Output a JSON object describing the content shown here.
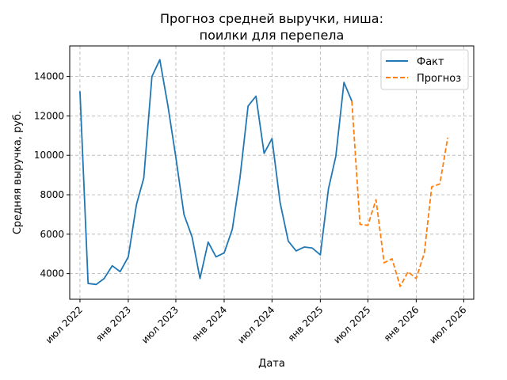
{
  "chart_data": {
    "type": "line",
    "title_lines": [
      "Прогноз средней выручки, ниша:",
      "поилки для перепела"
    ],
    "xlabel": "Дата",
    "ylabel": "Средняя выручка, руб.",
    "ylim": [
      2700,
      15550
    ],
    "y_ticks": [
      4000,
      6000,
      8000,
      10000,
      12000,
      14000
    ],
    "x_range": [
      "2022-05-23",
      "2026-08-08"
    ],
    "x_ticks": [
      {
        "date": "2022-07-01",
        "label": "июл 2022"
      },
      {
        "date": "2023-01-01",
        "label": "янв 2023"
      },
      {
        "date": "2023-07-01",
        "label": "июл 2023"
      },
      {
        "date": "2024-01-01",
        "label": "янв 2024"
      },
      {
        "date": "2024-07-01",
        "label": "июл 2024"
      },
      {
        "date": "2025-01-01",
        "label": "янв 2025"
      },
      {
        "date": "2025-07-01",
        "label": "июл 2025"
      },
      {
        "date": "2026-01-01",
        "label": "янв 2026"
      },
      {
        "date": "2026-07-01",
        "label": "июл 2026"
      }
    ],
    "grid": true,
    "legend_position": "top-right",
    "series": [
      {
        "name": "Факт",
        "color": "#1f77b4",
        "style": "solid",
        "points": [
          [
            "2022-07-01",
            13250
          ],
          [
            "2022-08-01",
            3500
          ],
          [
            "2022-09-01",
            3450
          ],
          [
            "2022-10-01",
            3750
          ],
          [
            "2022-11-01",
            4400
          ],
          [
            "2022-12-01",
            4100
          ],
          [
            "2023-01-01",
            4850
          ],
          [
            "2023-02-01",
            7500
          ],
          [
            "2023-03-01",
            8850
          ],
          [
            "2023-04-01",
            14000
          ],
          [
            "2023-05-01",
            14850
          ],
          [
            "2023-06-01",
            12500
          ],
          [
            "2023-07-01",
            9900
          ],
          [
            "2023-08-01",
            7000
          ],
          [
            "2023-09-01",
            5850
          ],
          [
            "2023-10-01",
            3750
          ],
          [
            "2023-11-01",
            5600
          ],
          [
            "2023-12-01",
            4850
          ],
          [
            "2024-01-01",
            5050
          ],
          [
            "2024-02-01",
            6250
          ],
          [
            "2024-03-01",
            8850
          ],
          [
            "2024-04-01",
            12500
          ],
          [
            "2024-05-01",
            13000
          ],
          [
            "2024-06-01",
            10100
          ],
          [
            "2024-07-01",
            10850
          ],
          [
            "2024-08-01",
            7600
          ],
          [
            "2024-09-01",
            5650
          ],
          [
            "2024-10-01",
            5150
          ],
          [
            "2024-11-01",
            5350
          ],
          [
            "2024-12-01",
            5300
          ],
          [
            "2025-01-01",
            4950
          ],
          [
            "2025-02-01",
            8300
          ],
          [
            "2025-03-01",
            9950
          ],
          [
            "2025-04-01",
            13700
          ],
          [
            "2025-05-01",
            12750
          ]
        ]
      },
      {
        "name": "Прогноз",
        "color": "#ff7f0e",
        "style": "dashed",
        "points": [
          [
            "2025-05-01",
            12750
          ],
          [
            "2025-06-01",
            6500
          ],
          [
            "2025-07-01",
            6450
          ],
          [
            "2025-08-01",
            7750
          ],
          [
            "2025-09-01",
            4550
          ],
          [
            "2025-10-01",
            4750
          ],
          [
            "2025-11-01",
            3350
          ],
          [
            "2025-12-01",
            4100
          ],
          [
            "2026-01-01",
            3750
          ],
          [
            "2026-02-01",
            5050
          ],
          [
            "2026-03-01",
            8400
          ],
          [
            "2026-04-01",
            8550
          ],
          [
            "2026-05-01",
            10900
          ]
        ]
      }
    ]
  }
}
